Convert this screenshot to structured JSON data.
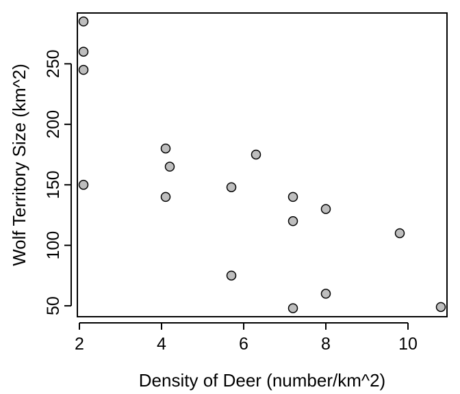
{
  "chart_data": {
    "type": "scatter",
    "xlabel": "Density of Deer (number/km^2)",
    "ylabel": "Wolf Territory Size (km^2)",
    "xlim": [
      1.95,
      10.95
    ],
    "ylim": [
      41,
      292
    ],
    "x_ticks": [
      2,
      4,
      6,
      8,
      10
    ],
    "y_ticks": [
      50,
      100,
      150,
      200,
      250
    ],
    "grid": false,
    "legend": "none",
    "marker_fill": "#bebebe",
    "marker_stroke": "#000000",
    "points": [
      {
        "x": 2.1,
        "y": 285
      },
      {
        "x": 2.1,
        "y": 260
      },
      {
        "x": 2.1,
        "y": 245
      },
      {
        "x": 2.1,
        "y": 150
      },
      {
        "x": 4.1,
        "y": 180
      },
      {
        "x": 4.2,
        "y": 165
      },
      {
        "x": 4.1,
        "y": 140
      },
      {
        "x": 5.7,
        "y": 148
      },
      {
        "x": 5.7,
        "y": 75
      },
      {
        "x": 6.3,
        "y": 175
      },
      {
        "x": 7.2,
        "y": 140
      },
      {
        "x": 7.2,
        "y": 120
      },
      {
        "x": 7.2,
        "y": 48
      },
      {
        "x": 8.0,
        "y": 130
      },
      {
        "x": 8.0,
        "y": 60
      },
      {
        "x": 9.8,
        "y": 110
      },
      {
        "x": 10.8,
        "y": 49
      }
    ]
  }
}
